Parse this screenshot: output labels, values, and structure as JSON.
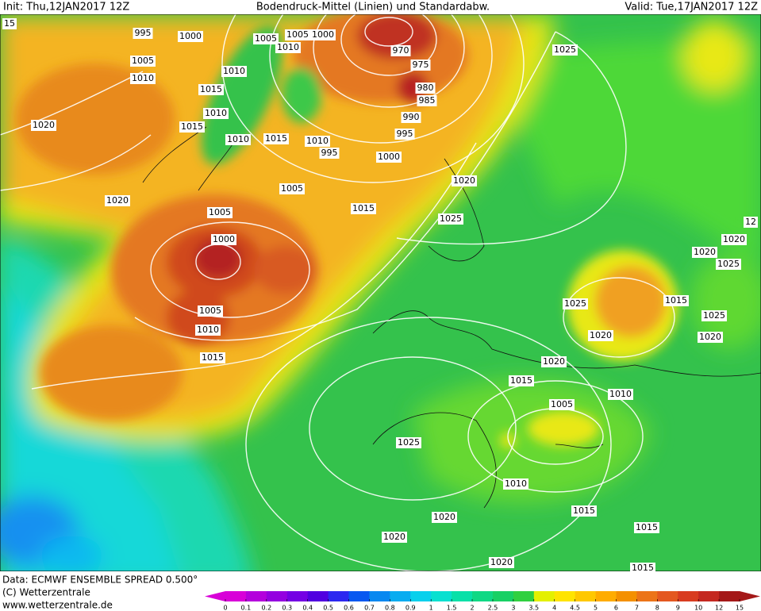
{
  "header": {
    "init": "Init: Thu,12JAN2017 12Z",
    "title": "Bodendruck-Mittel (Linien) und Standardabw.",
    "valid": "Valid: Tue,17JAN2017 12Z"
  },
  "footer": {
    "source": "Data: ECMWF ENSEMBLE SPREAD 0.500°",
    "copyright": "(C) Wetterzentrale",
    "website": "www.wetterzentrale.de"
  },
  "isobar_labels": [
    15,
    995,
    1000,
    1005,
    1005,
    1000,
    1010,
    1005,
    1010,
    1010,
    1015,
    1010,
    1015,
    1020,
    1010,
    1015,
    1010,
    995,
    970,
    975,
    980,
    985,
    990,
    995,
    1000,
    1005,
    1015,
    1020,
    1025,
    1025,
    1020,
    1005,
    1000,
    1005,
    1010,
    1015,
    12,
    1020,
    1020,
    1025,
    1025,
    1015,
    1020,
    1025,
    1020,
    1020,
    1015,
    1010,
    1005,
    1025,
    1010,
    1015,
    1015,
    1020,
    1020,
    1020,
    1015
  ],
  "colorbar": {
    "ticks": [
      0,
      0.1,
      0.2,
      0.3,
      0.4,
      0.5,
      0.6,
      0.7,
      0.8,
      0.9,
      1,
      1.5,
      2,
      2.5,
      3,
      3.5,
      4,
      4.5,
      5,
      6,
      7,
      8,
      9,
      10,
      12,
      15
    ],
    "colors": [
      "#d800d8",
      "#b400dc",
      "#9400e0",
      "#7400e4",
      "#5000e0",
      "#2c28f0",
      "#0858f0",
      "#0888f0",
      "#08acf0",
      "#08d0ec",
      "#08e0d0",
      "#08e0a8",
      "#10d884",
      "#18d064",
      "#30d040",
      "#e4f000",
      "#ffe400",
      "#ffc800",
      "#ffac00",
      "#f49000",
      "#ec7418",
      "#e45820",
      "#d83c20",
      "#c42820",
      "#a41818"
    ]
  }
}
